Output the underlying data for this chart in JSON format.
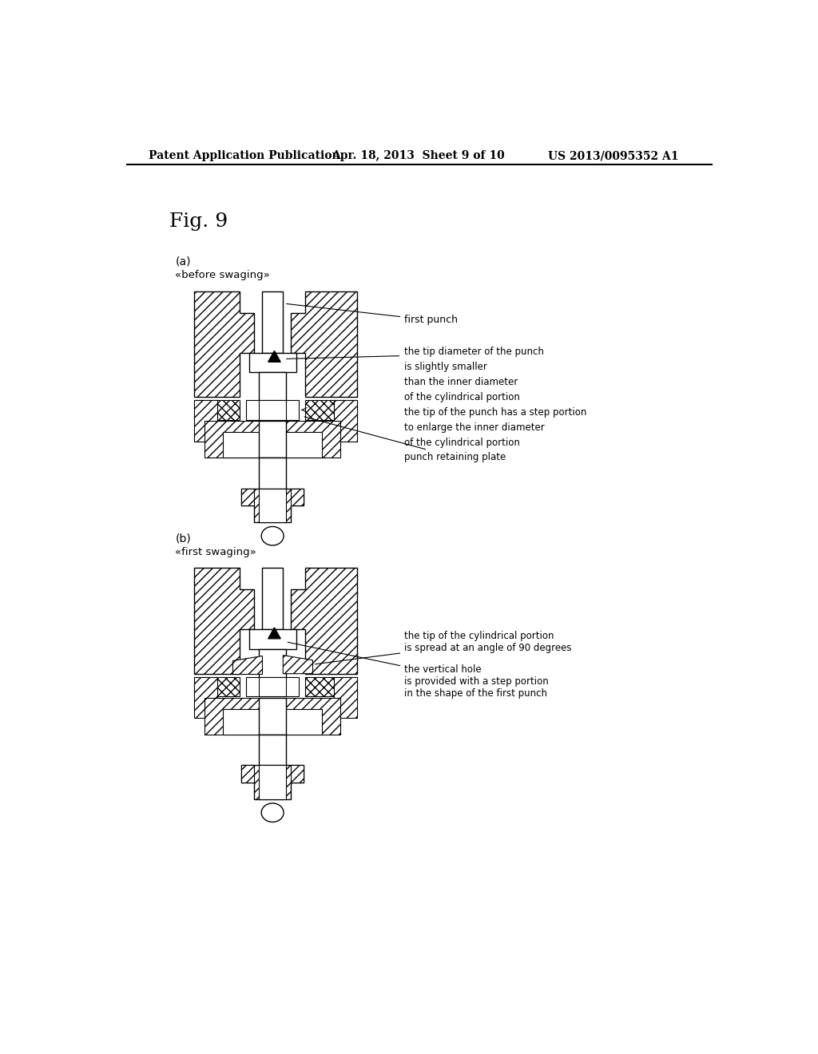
{
  "bg_color": "#ffffff",
  "header_text": "Patent Application Publication",
  "header_date": "Apr. 18, 2013  Sheet 9 of 10",
  "header_patent": "US 2013/0095352 A1",
  "fig_label": "Fig. 9",
  "sub_a_label": "(a)",
  "sub_a_title": "》before swaging「",
  "sub_b_label": "(b)",
  "sub_b_title": "》first swaging「",
  "ann_a_1": "first punch",
  "ann_a_2": "the tip diameter of the punch\nis slightly smaller\nthan the inner diameter\nof the cylindrical portion\nthe tip of the punch has a step portion\nto enlarge the inner diameter\nof the cylindrical portion",
  "ann_a_3": "punch retaining plate",
  "ann_b_1": "the tip of the cylindrical portion\nis spread at an angle of 90 degrees",
  "ann_b_2": "the vertical hole\nis provided with a step portion\nin the shape of the first punch"
}
